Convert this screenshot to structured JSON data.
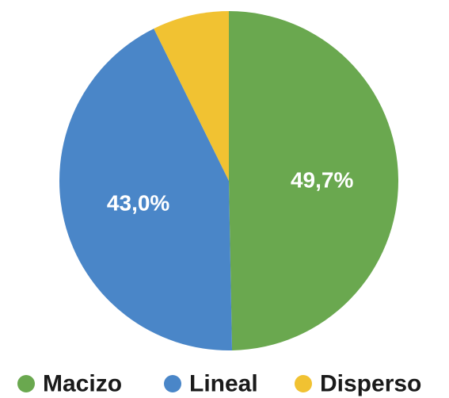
{
  "chart_data": {
    "type": "pie",
    "start_angle_deg": 0,
    "direction": "clockwise",
    "slices": [
      {
        "name": "Macizo",
        "value": 49.7,
        "label": "49,7%",
        "color": "#6aa84f"
      },
      {
        "name": "Lineal",
        "value": 43.0,
        "label": "43,0%",
        "color": "#4a86c8"
      },
      {
        "name": "Disperso",
        "value": 7.3,
        "label": "",
        "color": "#f1c232"
      }
    ],
    "legend": {
      "placement": "bottom",
      "items": [
        {
          "label": "Macizo",
          "color": "#6aa84f"
        },
        {
          "label": "Lineal",
          "color": "#4a86c8"
        },
        {
          "label": "Disperso",
          "color": "#f1c232"
        }
      ]
    }
  }
}
